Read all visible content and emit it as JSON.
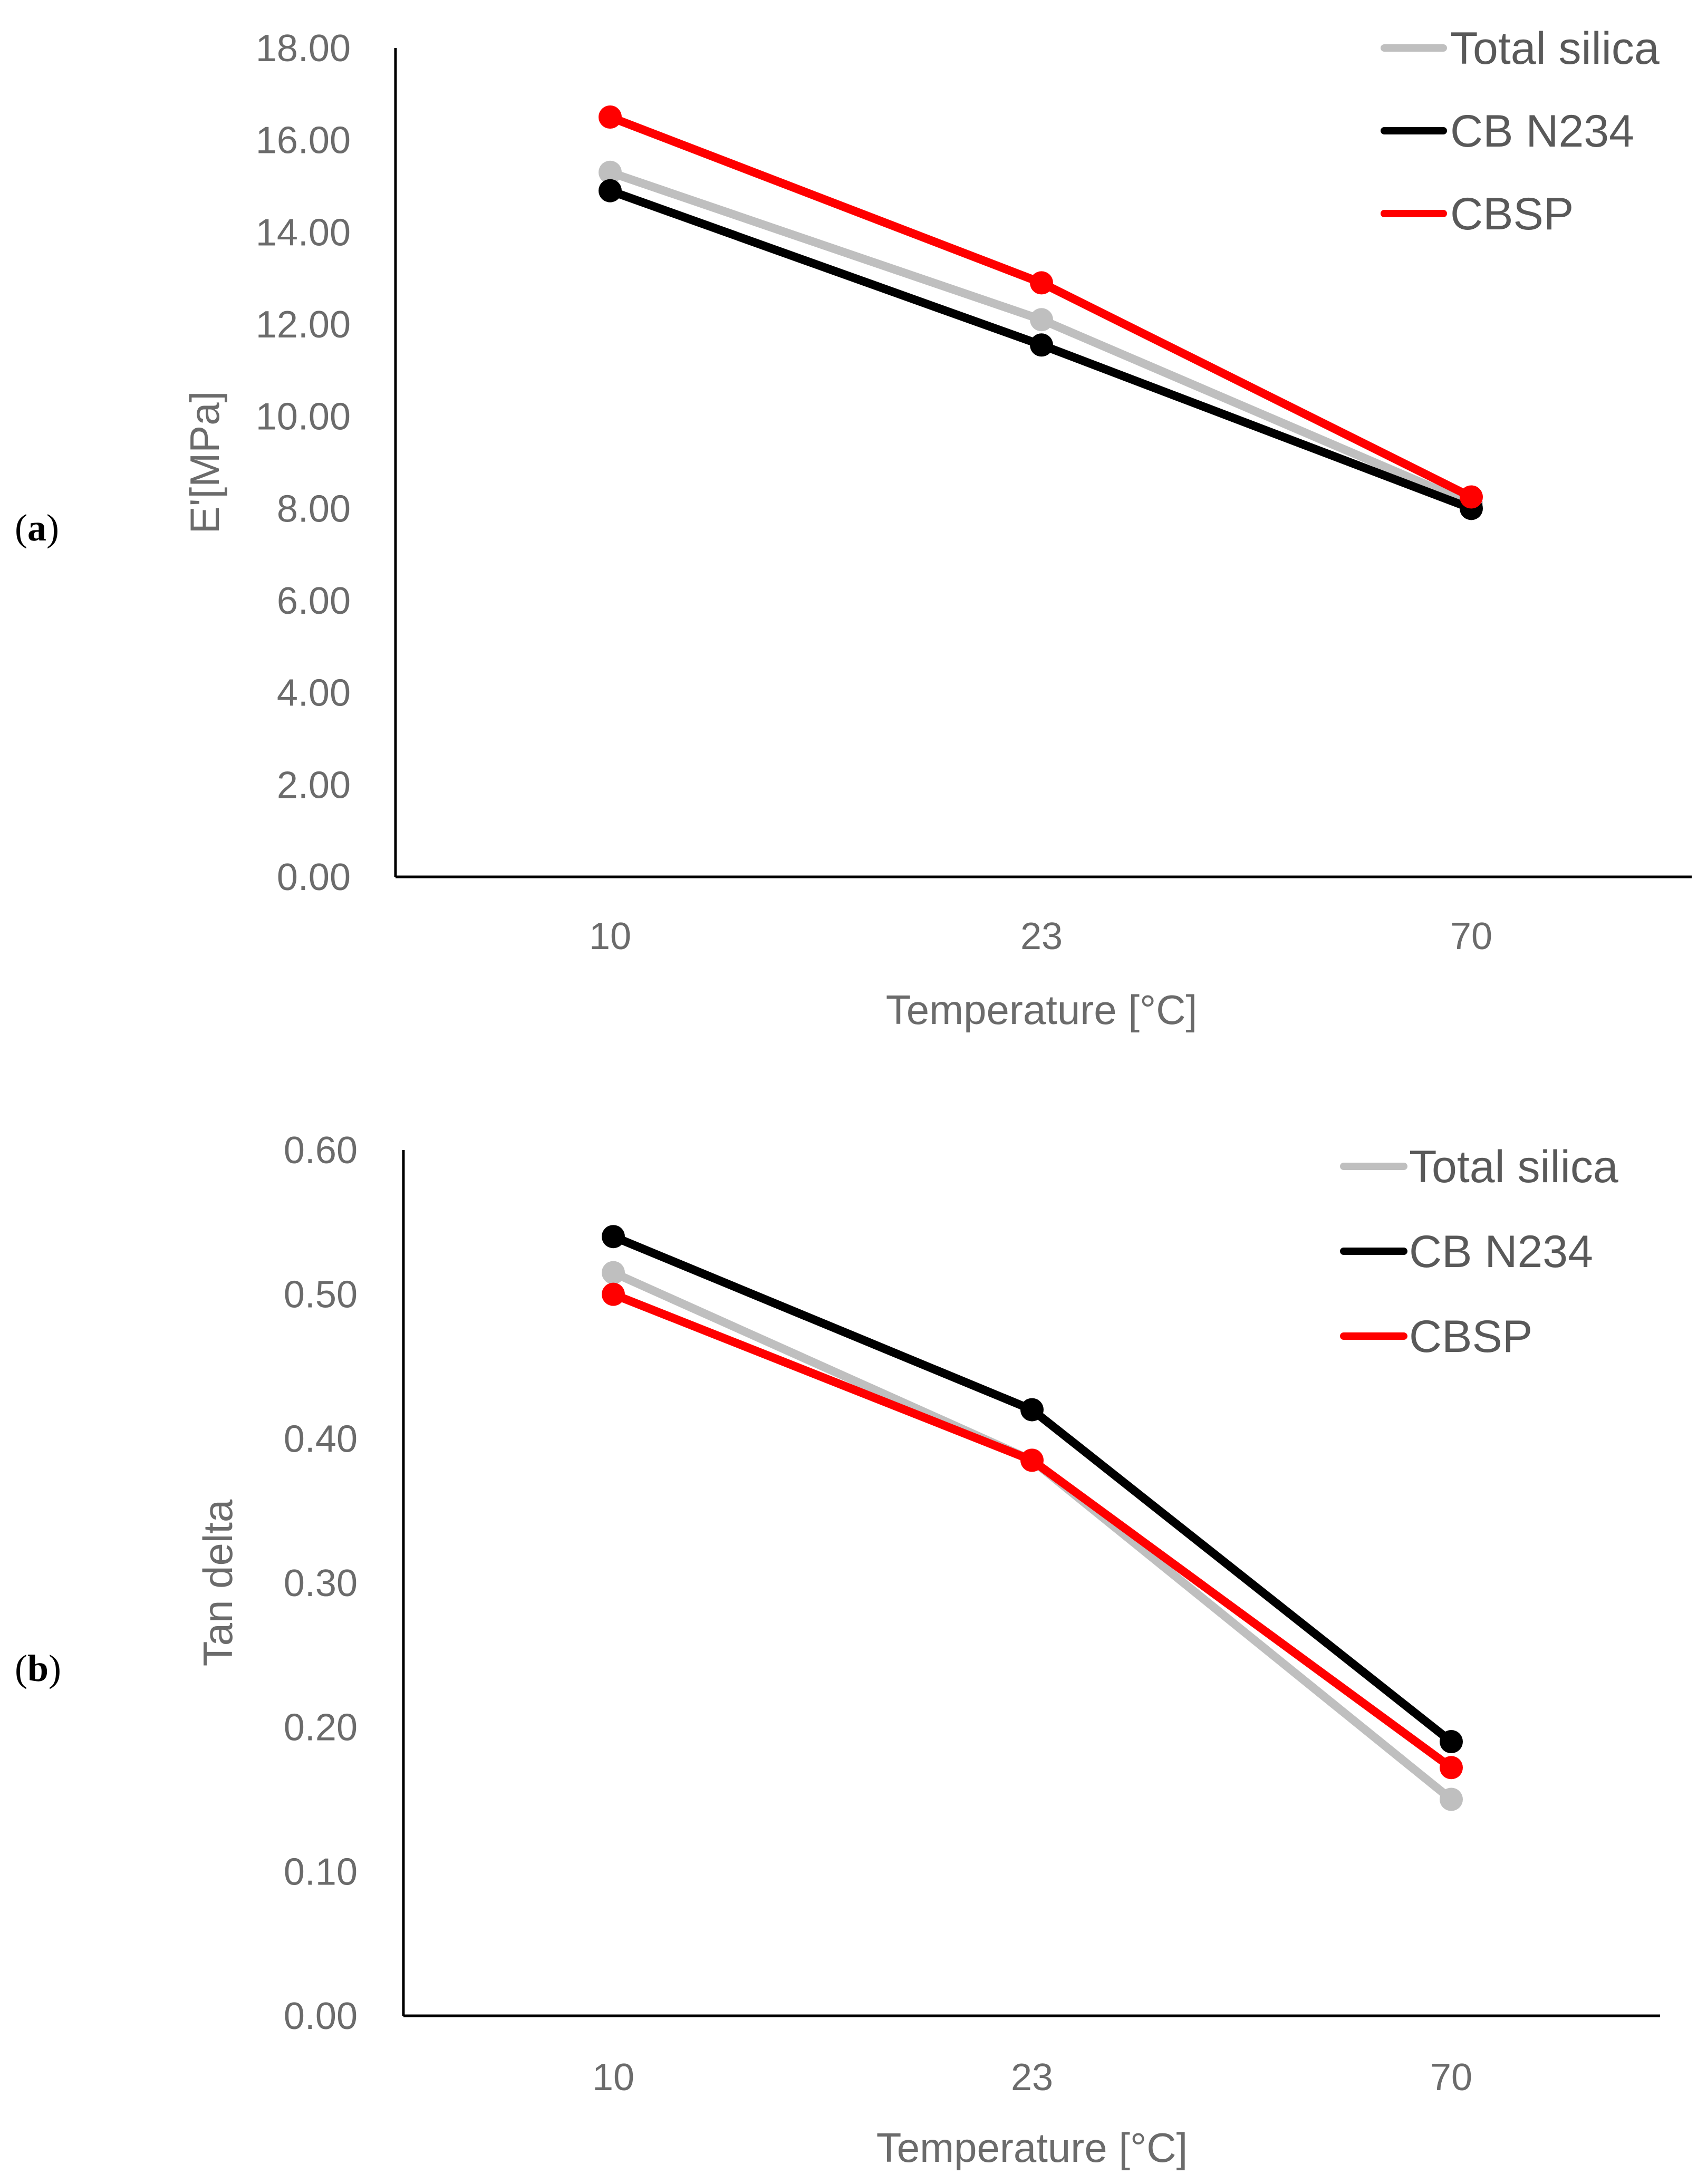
{
  "chart_data": [
    {
      "panel": "a",
      "type": "line",
      "title": "",
      "xlabel": "Temperature [°C]",
      "ylabel": "E'[MPa]",
      "categories": [
        "10",
        "23",
        "70"
      ],
      "ylim": [
        0,
        18
      ],
      "yticks": [
        "0.00",
        "2.00",
        "4.00",
        "6.00",
        "8.00",
        "10.00",
        "12.00",
        "14.00",
        "16.00",
        "18.00"
      ],
      "grid": false,
      "legend_position": "top-right",
      "series": [
        {
          "name": "Total silica",
          "color": "#BFBFBF",
          "values": [
            15.3,
            12.1,
            8.1
          ]
        },
        {
          "name": "CB N234",
          "color": "#000000",
          "values": [
            14.9,
            11.55,
            8.0
          ]
        },
        {
          "name": "CBSP",
          "color": "#FF0000",
          "values": [
            16.5,
            12.9,
            8.25
          ]
        }
      ]
    },
    {
      "panel": "b",
      "type": "line",
      "title": "",
      "xlabel": "Temperature [°C]",
      "ylabel": "Tan delta",
      "categories": [
        "10",
        "23",
        "70"
      ],
      "ylim": [
        0,
        0.6
      ],
      "yticks": [
        "0.00",
        "0.10",
        "0.20",
        "0.30",
        "0.40",
        "0.50",
        "0.60"
      ],
      "grid": false,
      "legend_position": "top-right",
      "series": [
        {
          "name": "Total silica",
          "color": "#BFBFBF",
          "values": [
            0.515,
            0.385,
            0.15
          ]
        },
        {
          "name": "CB N234",
          "color": "#000000",
          "values": [
            0.54,
            0.42,
            0.19
          ]
        },
        {
          "name": "CBSP",
          "color": "#FF0000",
          "values": [
            0.5,
            0.385,
            0.172
          ]
        }
      ]
    }
  ]
}
